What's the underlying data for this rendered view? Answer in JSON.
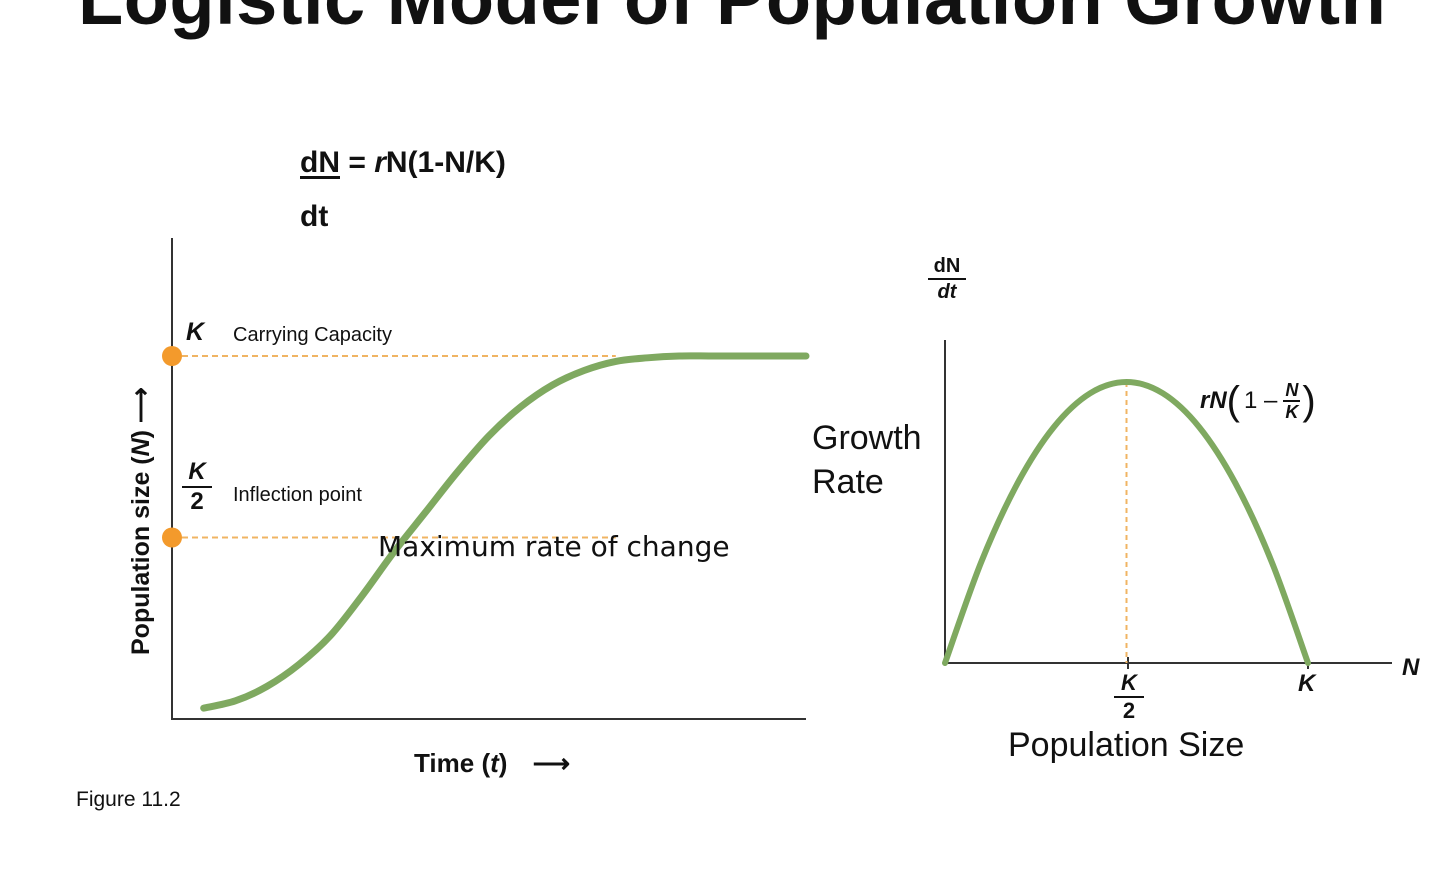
{
  "slide": {
    "title": "Logistic Model of Population Growth",
    "equation_numerator": "dN",
    "equation_rhs_prefix": " = ",
    "equation_rhs_r": "r",
    "equation_rhs_rest": "N(1-N/K)",
    "equation_denominator": "dt",
    "figure_caption": "Figure 11.2"
  },
  "chart_data": [
    {
      "type": "line",
      "title": "",
      "xlabel_text": "Time (",
      "xlabel_var": "t",
      "xlabel_close": ")",
      "xlabel_arrow": "⟶",
      "ylabel_text": "Population size (",
      "ylabel_var": "N",
      "ylabel_close": ")",
      "ylabel_arrow": "⟶",
      "xlim": [
        0,
        10
      ],
      "ylim": [
        0,
        1.2
      ],
      "series": [
        {
          "name": "logistic",
          "color": "#7fa960",
          "x": [
            0.5,
            1,
            1.5,
            2,
            2.5,
            3,
            3.5,
            4,
            4.5,
            5,
            5.5,
            6,
            6.5,
            7,
            7.5,
            8,
            8.5,
            9,
            9.5,
            10
          ],
          "y": [
            0.03,
            0.05,
            0.09,
            0.15,
            0.23,
            0.34,
            0.46,
            0.57,
            0.68,
            0.78,
            0.86,
            0.92,
            0.96,
            0.985,
            0.995,
            1.0,
            1.0,
            1.0,
            1.0,
            1.0
          ]
        }
      ],
      "reference_lines": [
        {
          "y": 1.0,
          "x_end": 7.0,
          "color": "#f0b463"
        },
        {
          "y": 0.5,
          "x_end": 7.0,
          "color": "#f0b463"
        }
      ],
      "markers": [
        {
          "x": 0,
          "y": 1.0,
          "color": "#f39a2c"
        },
        {
          "x": 0,
          "y": 0.5,
          "color": "#f39a2c"
        }
      ],
      "annotations": {
        "k": "K",
        "carrying_capacity": "Carrying Capacity",
        "half_k_top": "K",
        "half_k_bottom": "2",
        "inflection": "Inflection point",
        "max_rate": "Maximum rate of change"
      }
    },
    {
      "type": "line",
      "title": "",
      "xlabel": "Population Size",
      "ylabel": "Growth Rate",
      "ylabel_frac_top": "dN",
      "ylabel_frac_bottom": "dt",
      "xlim": [
        0,
        1.25
      ],
      "ylim": [
        0,
        1.2
      ],
      "series": [
        {
          "name": "rN(1-N/K)",
          "color": "#7fa960",
          "x": [
            0,
            0.1,
            0.2,
            0.3,
            0.4,
            0.5,
            0.6,
            0.7,
            0.8,
            0.9,
            1.0
          ],
          "y": [
            0,
            0.36,
            0.64,
            0.84,
            0.96,
            1.0,
            0.96,
            0.84,
            0.64,
            0.36,
            0
          ]
        }
      ],
      "reference_lines": [
        {
          "x": 0.5,
          "color": "#f0b463"
        }
      ],
      "annotations": {
        "curve_r": "rN",
        "curve_paren_open": "(",
        "curve_one_minus": "1 –",
        "curve_frac_top": "N",
        "curve_frac_bottom": "K",
        "curve_paren_close": ")",
        "x_axis_var": "N",
        "tick_half_k_top": "K",
        "tick_half_k_bottom": "2",
        "tick_k": "K"
      }
    }
  ]
}
